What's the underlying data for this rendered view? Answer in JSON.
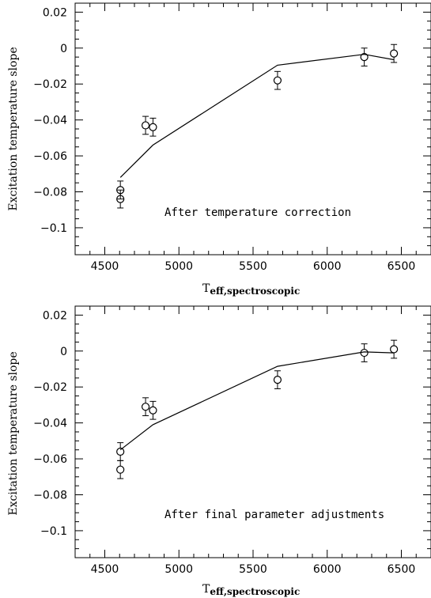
{
  "chart_data": [
    {
      "type": "scatter",
      "title": "",
      "xlabel": "T",
      "xlabel_sub": "eff,spectroscopic",
      "ylabel": "Excitation temperature slope",
      "annotation": "After temperature correction",
      "xlim": [
        4300,
        6700
      ],
      "ylim": [
        -0.115,
        0.025
      ],
      "x_ticks": [
        4500,
        5000,
        5500,
        6000,
        6500
      ],
      "y_ticks": [
        0.02,
        0,
        -0.02,
        -0.04,
        -0.06,
        -0.08,
        -0.1
      ],
      "y_tick_labels": [
        "0.02",
        "0",
        "−0.02",
        "−0.04",
        "−0.06",
        "−0.08",
        "−0.1"
      ],
      "points": [
        {
          "x": 4605,
          "y": -0.079,
          "err": 0.005
        },
        {
          "x": 4605,
          "y": -0.084,
          "err": 0.005
        },
        {
          "x": 4775,
          "y": -0.043,
          "err": 0.005
        },
        {
          "x": 4825,
          "y": -0.044,
          "err": 0.005
        },
        {
          "x": 5665,
          "y": -0.018,
          "err": 0.005
        },
        {
          "x": 6250,
          "y": -0.005,
          "err": 0.005
        },
        {
          "x": 6450,
          "y": -0.003,
          "err": 0.005
        }
      ],
      "model": {
        "x": [
          4605,
          4825,
          5665,
          6250,
          6450
        ],
        "y": [
          -0.072,
          -0.054,
          -0.0095,
          -0.0035,
          -0.0065
        ]
      }
    },
    {
      "type": "scatter",
      "title": "",
      "xlabel": "T",
      "xlabel_sub": "eff,spectroscopic",
      "ylabel": "Excitation temperature slope",
      "annotation": "After final parameter adjustments",
      "xlim": [
        4300,
        6700
      ],
      "ylim": [
        -0.115,
        0.025
      ],
      "x_ticks": [
        4500,
        5000,
        5500,
        6000,
        6500
      ],
      "y_ticks": [
        0.02,
        0,
        -0.02,
        -0.04,
        -0.06,
        -0.08,
        -0.1
      ],
      "y_tick_labels": [
        "0.02",
        "0",
        "−0.02",
        "−0.04",
        "−0.06",
        "−0.08",
        "−0.1"
      ],
      "points": [
        {
          "x": 4605,
          "y": -0.056,
          "err": 0.005
        },
        {
          "x": 4605,
          "y": -0.066,
          "err": 0.005
        },
        {
          "x": 4775,
          "y": -0.031,
          "err": 0.005
        },
        {
          "x": 4825,
          "y": -0.033,
          "err": 0.005
        },
        {
          "x": 5665,
          "y": -0.016,
          "err": 0.005
        },
        {
          "x": 6250,
          "y": -0.001,
          "err": 0.005
        },
        {
          "x": 6450,
          "y": 0.001,
          "err": 0.005
        }
      ],
      "model": {
        "x": [
          4605,
          4825,
          5665,
          6250,
          6450
        ],
        "y": [
          -0.055,
          -0.041,
          -0.0085,
          -0.0005,
          -0.001
        ]
      }
    }
  ]
}
